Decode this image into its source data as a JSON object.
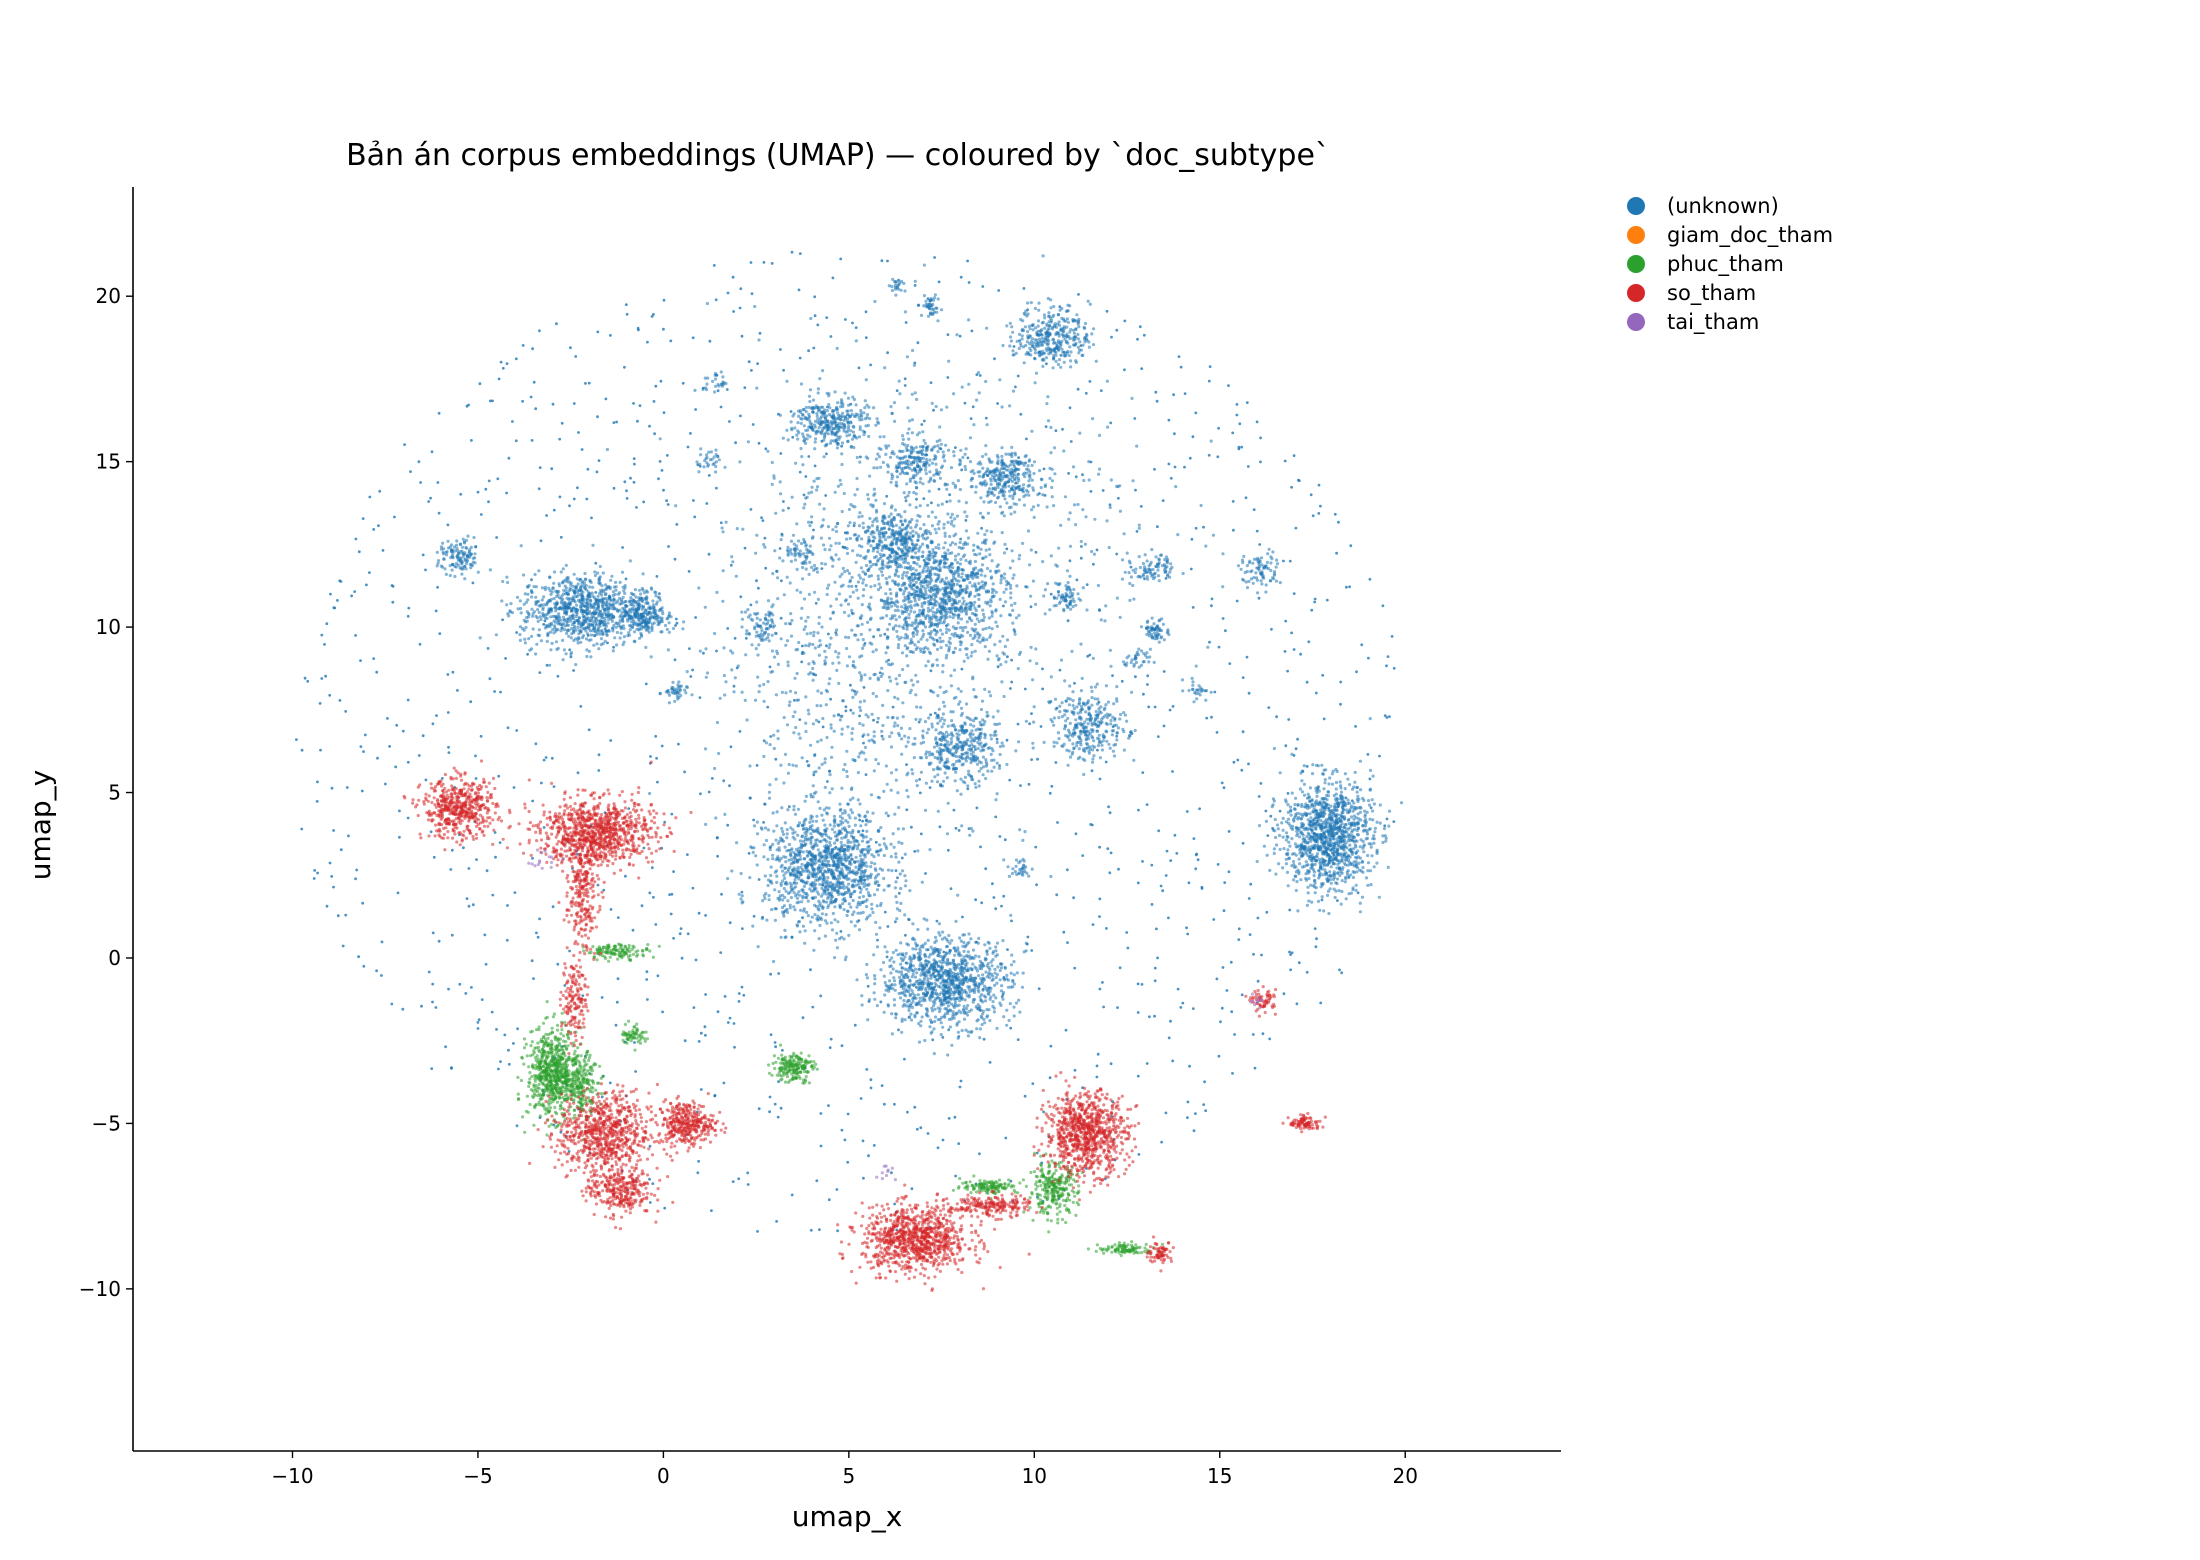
{
  "chart_data": {
    "type": "scatter",
    "title": "Bản án corpus embeddings (UMAP) — coloured by `doc_subtype`",
    "xlabel": "umap_x",
    "ylabel": "umap_y",
    "xlim": [
      -14.3,
      24.2
    ],
    "ylim": [
      -14.9,
      23.3
    ],
    "x_ticks": [
      -10,
      -5,
      0,
      5,
      10,
      15,
      20
    ],
    "y_ticks": [
      -10,
      -5,
      0,
      5,
      10,
      15,
      20
    ],
    "x_tick_labels": [
      "−10",
      "−5",
      "0",
      "5",
      "10",
      "15",
      "20"
    ],
    "y_tick_labels": [
      "−10",
      "−5",
      "0",
      "5",
      "10",
      "15",
      "20"
    ],
    "grid": false,
    "legend_position": "outside-top-right",
    "series": [
      {
        "name": "(unknown)",
        "color": "#1f77b4",
        "clusters": [
          {
            "x": 7.5,
            "y": 11.0,
            "rx": 1.6,
            "ry": 1.6,
            "n": 900
          },
          {
            "x": 6.2,
            "y": 12.6,
            "rx": 0.9,
            "ry": 0.8,
            "n": 300
          },
          {
            "x": 4.5,
            "y": 16.2,
            "rx": 0.9,
            "ry": 0.7,
            "n": 320
          },
          {
            "x": 6.8,
            "y": 15.0,
            "rx": 0.8,
            "ry": 0.7,
            "n": 200
          },
          {
            "x": 9.2,
            "y": 14.5,
            "rx": 0.9,
            "ry": 0.7,
            "n": 260
          },
          {
            "x": 10.5,
            "y": 18.8,
            "rx": 0.9,
            "ry": 0.8,
            "n": 320
          },
          {
            "x": 7.2,
            "y": 19.7,
            "rx": 0.2,
            "ry": 0.3,
            "n": 40
          },
          {
            "x": 6.3,
            "y": 20.3,
            "rx": 0.2,
            "ry": 0.2,
            "n": 20
          },
          {
            "x": -5.5,
            "y": 12.1,
            "rx": 0.5,
            "ry": 0.5,
            "n": 120
          },
          {
            "x": -2.2,
            "y": 10.5,
            "rx": 1.5,
            "ry": 1.0,
            "n": 850
          },
          {
            "x": -0.5,
            "y": 10.4,
            "rx": 0.5,
            "ry": 0.6,
            "n": 200
          },
          {
            "x": 4.4,
            "y": 2.7,
            "rx": 1.5,
            "ry": 1.6,
            "n": 1100
          },
          {
            "x": 7.6,
            "y": -0.7,
            "rx": 1.6,
            "ry": 1.2,
            "n": 1000
          },
          {
            "x": 8.0,
            "y": 6.3,
            "rx": 1.0,
            "ry": 1.0,
            "n": 350
          },
          {
            "x": 11.5,
            "y": 7.0,
            "rx": 0.9,
            "ry": 0.9,
            "n": 280
          },
          {
            "x": 17.9,
            "y": 3.7,
            "rx": 1.1,
            "ry": 1.5,
            "n": 1100
          },
          {
            "x": 13.2,
            "y": 11.8,
            "rx": 0.5,
            "ry": 0.4,
            "n": 80
          },
          {
            "x": 13.3,
            "y": 9.9,
            "rx": 0.3,
            "ry": 0.3,
            "n": 60
          },
          {
            "x": 10.9,
            "y": 10.9,
            "rx": 0.4,
            "ry": 0.4,
            "n": 60
          },
          {
            "x": 16.1,
            "y": 11.7,
            "rx": 0.5,
            "ry": 0.5,
            "n": 80
          },
          {
            "x": 3.7,
            "y": 12.2,
            "rx": 0.4,
            "ry": 0.4,
            "n": 50
          },
          {
            "x": 2.7,
            "y": 10.0,
            "rx": 0.4,
            "ry": 0.6,
            "n": 60
          },
          {
            "x": 0.3,
            "y": 8.0,
            "rx": 0.3,
            "ry": 0.3,
            "n": 40
          },
          {
            "x": 1.2,
            "y": 15.0,
            "rx": 0.3,
            "ry": 0.3,
            "n": 25
          },
          {
            "x": 12.8,
            "y": 9.0,
            "rx": 0.3,
            "ry": 0.3,
            "n": 30
          },
          {
            "x": 9.6,
            "y": 2.7,
            "rx": 0.3,
            "ry": 0.3,
            "n": 30
          },
          {
            "x": 14.4,
            "y": 8.1,
            "rx": 0.3,
            "ry": 0.3,
            "n": 25
          },
          {
            "x": 1.4,
            "y": 17.4,
            "rx": 0.3,
            "ry": 0.3,
            "n": 25
          },
          {
            "x": 5.0,
            "y": 9.0,
            "rx": 3.5,
            "ry": 5.5,
            "n": 700
          },
          {
            "x": 8.0,
            "y": 13.0,
            "rx": 5.0,
            "ry": 5.5,
            "n": 500
          }
        ],
        "scatter": {
          "cx": 5.0,
          "cy": 6.5,
          "rx": 15.0,
          "ry": 15.0,
          "n": 1400
        }
      },
      {
        "name": "giam_doc_tham",
        "color": "#ff7f0e",
        "clusters": []
      },
      {
        "name": "phuc_tham",
        "color": "#2ca02c",
        "clusters": [
          {
            "x": -3.0,
            "y": -3.5,
            "rx": 0.6,
            "ry": 1.2,
            "n": 650
          },
          {
            "x": -2.2,
            "y": -3.8,
            "rx": 0.4,
            "ry": 0.8,
            "n": 200
          },
          {
            "x": -1.2,
            "y": 0.2,
            "rx": 0.8,
            "ry": 0.2,
            "n": 120
          },
          {
            "x": -0.8,
            "y": -2.3,
            "rx": 0.3,
            "ry": 0.3,
            "n": 60
          },
          {
            "x": 3.5,
            "y": -3.3,
            "rx": 0.5,
            "ry": 0.4,
            "n": 180
          },
          {
            "x": 10.5,
            "y": -7.0,
            "rx": 0.6,
            "ry": 0.7,
            "n": 260
          },
          {
            "x": 8.8,
            "y": -6.9,
            "rx": 0.7,
            "ry": 0.2,
            "n": 120
          },
          {
            "x": 12.5,
            "y": -8.8,
            "rx": 0.7,
            "ry": 0.15,
            "n": 90
          }
        ]
      },
      {
        "name": "so_tham",
        "color": "#d62728",
        "clusters": [
          {
            "x": -5.5,
            "y": 4.5,
            "rx": 0.9,
            "ry": 0.8,
            "n": 500
          },
          {
            "x": -1.8,
            "y": 3.8,
            "rx": 1.4,
            "ry": 0.9,
            "n": 900
          },
          {
            "x": -2.2,
            "y": 2.0,
            "rx": 0.4,
            "ry": 1.5,
            "n": 250
          },
          {
            "x": -2.4,
            "y": -1.2,
            "rx": 0.3,
            "ry": 1.2,
            "n": 150
          },
          {
            "x": -1.6,
            "y": -5.3,
            "rx": 1.1,
            "ry": 1.1,
            "n": 700
          },
          {
            "x": 0.6,
            "y": -5.0,
            "rx": 0.7,
            "ry": 0.6,
            "n": 350
          },
          {
            "x": -1.2,
            "y": -7.0,
            "rx": 0.8,
            "ry": 0.7,
            "n": 300
          },
          {
            "x": 6.8,
            "y": -8.5,
            "rx": 1.3,
            "ry": 0.9,
            "n": 900
          },
          {
            "x": 8.8,
            "y": -7.5,
            "rx": 1.0,
            "ry": 0.3,
            "n": 200
          },
          {
            "x": 11.4,
            "y": -5.3,
            "rx": 1.0,
            "ry": 1.1,
            "n": 850
          },
          {
            "x": 13.4,
            "y": -8.9,
            "rx": 0.3,
            "ry": 0.3,
            "n": 70
          },
          {
            "x": 17.3,
            "y": -5.0,
            "rx": 0.4,
            "ry": 0.2,
            "n": 90
          },
          {
            "x": 16.2,
            "y": -1.3,
            "rx": 0.3,
            "ry": 0.3,
            "n": 60
          }
        ]
      },
      {
        "name": "tai_tham",
        "color": "#9467bd",
        "clusters": [
          {
            "x": -3.3,
            "y": 3.0,
            "rx": 0.4,
            "ry": 0.3,
            "n": 15
          },
          {
            "x": 16.0,
            "y": -1.3,
            "rx": 0.2,
            "ry": 0.2,
            "n": 10
          },
          {
            "x": 6.0,
            "y": -6.5,
            "rx": 0.3,
            "ry": 0.3,
            "n": 10
          }
        ]
      }
    ]
  }
}
